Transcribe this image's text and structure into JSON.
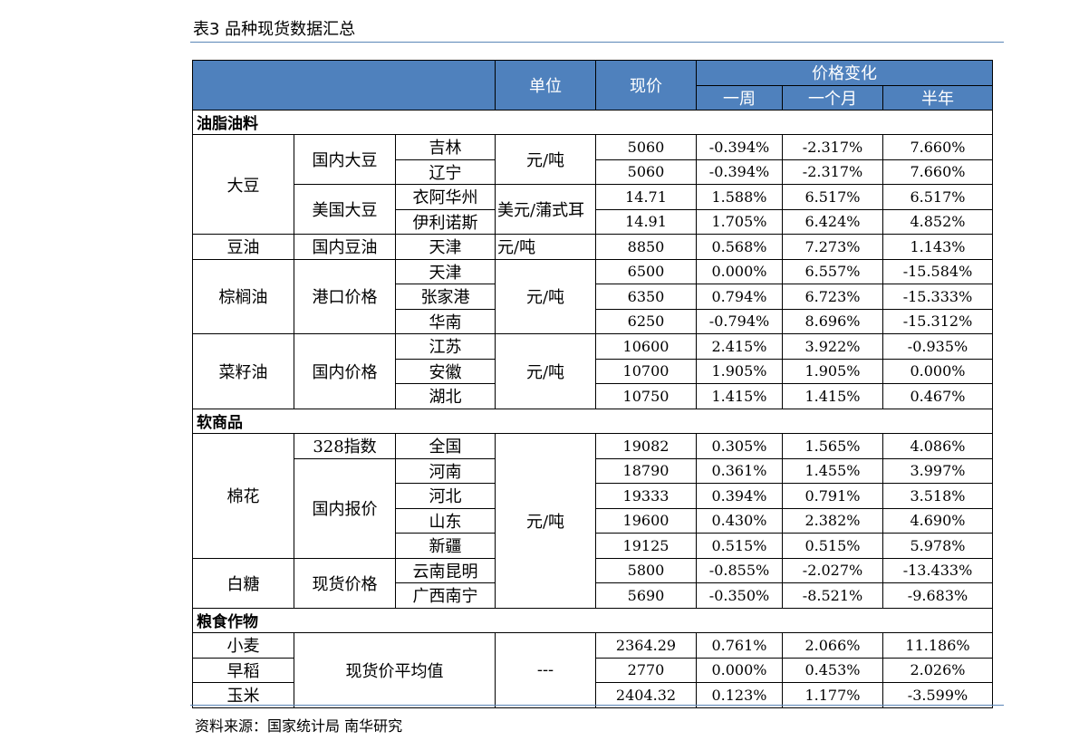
{
  "title": "表3 品种现货数据汇总",
  "source": "资料来源：国家统计局 南华研究",
  "header": {
    "unit": "单位",
    "price": "现价",
    "change": "价格变化",
    "week": "一周",
    "month": "一个月",
    "halfyear": "半年"
  },
  "sections": {
    "oils": "油脂油料",
    "soft": "软商品",
    "grain": "粮食作物"
  },
  "labels": {
    "soybean": "大豆",
    "domestic_soybean": "国内大豆",
    "us_soybean": "美国大豆",
    "soy_oil": "豆油",
    "domestic_soy_oil": "国内豆油",
    "palm_oil": "棕榈油",
    "port_price": "港口价格",
    "rapeseed_oil": "菜籽油",
    "domestic_price": "国内价格",
    "cotton": "棉花",
    "index_328": "328指数",
    "domestic_quote": "国内报价",
    "sugar": "白糖",
    "spot_price": "现货价格",
    "avg_spot_price": "现货价平均值"
  },
  "units": {
    "yuan_ton": "元/吨",
    "usd_bushel": "美元/蒲式耳",
    "none": "---"
  },
  "rows": [
    {
      "region": "吉林",
      "price": "5060",
      "w": "-0.394%",
      "m": "-2.317%",
      "h": "7.660%"
    },
    {
      "region": "辽宁",
      "price": "5060",
      "w": "-0.394%",
      "m": "-2.317%",
      "h": "7.660%"
    },
    {
      "region": "衣阿华州",
      "price": "14.71",
      "w": "1.588%",
      "m": "6.517%",
      "h": "6.517%"
    },
    {
      "region": "伊利诺斯",
      "price": "14.91",
      "w": "1.705%",
      "m": "6.424%",
      "h": "4.852%"
    },
    {
      "region": "天津",
      "price": "8850",
      "w": "0.568%",
      "m": "7.273%",
      "h": "1.143%"
    },
    {
      "region": "天津",
      "price": "6500",
      "w": "0.000%",
      "m": "6.557%",
      "h": "-15.584%"
    },
    {
      "region": "张家港",
      "price": "6350",
      "w": "0.794%",
      "m": "6.723%",
      "h": "-15.333%"
    },
    {
      "region": "华南",
      "price": "6250",
      "w": "-0.794%",
      "m": "8.696%",
      "h": "-15.312%"
    },
    {
      "region": "江苏",
      "price": "10600",
      "w": "2.415%",
      "m": "3.922%",
      "h": "-0.935%"
    },
    {
      "region": "安徽",
      "price": "10700",
      "w": "1.905%",
      "m": "1.905%",
      "h": "0.000%"
    },
    {
      "region": "湖北",
      "price": "10750",
      "w": "1.415%",
      "m": "1.415%",
      "h": "0.467%"
    },
    {
      "region": "全国",
      "price": "19082",
      "w": "0.305%",
      "m": "1.565%",
      "h": "4.086%"
    },
    {
      "region": "河南",
      "price": "18790",
      "w": "0.361%",
      "m": "1.455%",
      "h": "3.997%"
    },
    {
      "region": "河北",
      "price": "19333",
      "w": "0.394%",
      "m": "0.791%",
      "h": "3.518%"
    },
    {
      "region": "山东",
      "price": "19600",
      "w": "0.430%",
      "m": "2.382%",
      "h": "4.690%"
    },
    {
      "region": "新疆",
      "price": "19125",
      "w": "0.515%",
      "m": "0.515%",
      "h": "5.978%"
    },
    {
      "region": "云南昆明",
      "price": "5800",
      "w": "-0.855%",
      "m": "-2.027%",
      "h": "-13.433%"
    },
    {
      "region": "广西南宁",
      "price": "5690",
      "w": "-0.350%",
      "m": "-8.521%",
      "h": "-9.683%"
    },
    {
      "region": "小麦",
      "price": "2364.29",
      "w": "0.761%",
      "m": "2.066%",
      "h": "11.186%"
    },
    {
      "region": "早稻",
      "price": "2770",
      "w": "0.000%",
      "m": "0.453%",
      "h": "2.026%"
    },
    {
      "region": "玉米",
      "price": "2404.32",
      "w": "0.123%",
      "m": "1.177%",
      "h": "-3.599%"
    }
  ],
  "colors": {
    "header_bg": "#4f81bd",
    "header_text": "#ffffff",
    "rule": "#5a86b7"
  }
}
